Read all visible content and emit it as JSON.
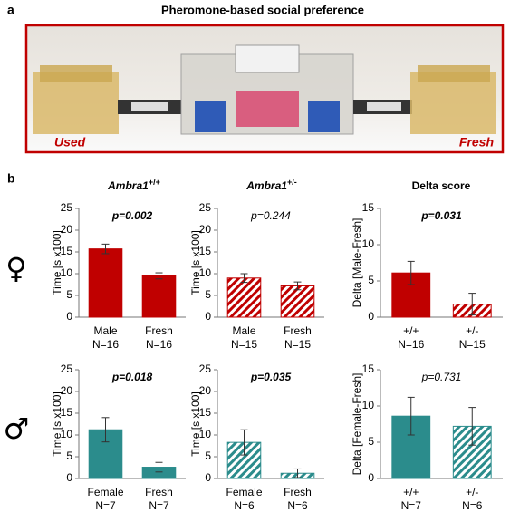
{
  "panel_labels": [
    "a",
    "b"
  ],
  "photo": {
    "title": "Pheromone-based social preference",
    "left_label": "Used",
    "right_label": "Fresh"
  },
  "column_titles": [
    {
      "gene": "Ambra1",
      "genotype": "+/+"
    },
    {
      "gene": "Ambra1",
      "genotype": "+/-"
    },
    {
      "text": "Delta score"
    }
  ],
  "row_symbols": [
    "♀",
    "♂"
  ],
  "chart_data": [
    {
      "type": "bar",
      "ylabel": "Time [s x100]",
      "annotation": "p=0.002",
      "annotation_bold": true,
      "color": "#c00000",
      "categories": [
        "Male",
        "Fresh"
      ],
      "n_labels": [
        "N=16",
        "N=16"
      ],
      "values": [
        15.7,
        9.5
      ],
      "errors": [
        1.1,
        0.7
      ],
      "hatched": [
        false,
        false
      ],
      "ylim": [
        0,
        25
      ],
      "yticks": [
        0,
        5,
        10,
        15,
        20,
        25
      ]
    },
    {
      "type": "bar",
      "ylabel": "Time [s x100]",
      "annotation": "p=0.244",
      "annotation_bold": false,
      "color": "#c00000",
      "categories": [
        "Male",
        "Fresh"
      ],
      "n_labels": [
        "N=15",
        "N=15"
      ],
      "values": [
        9.0,
        7.2
      ],
      "errors": [
        1.0,
        0.9
      ],
      "hatched": [
        true,
        true
      ],
      "ylim": [
        0,
        25
      ],
      "yticks": [
        0,
        5,
        10,
        15,
        20,
        25
      ]
    },
    {
      "type": "bar",
      "ylabel": "Delta [Male-Fresh]",
      "annotation": "p=0.031",
      "annotation_bold": true,
      "color": "#c00000",
      "categories": [
        "+/+",
        "+/-"
      ],
      "n_labels": [
        "N=16",
        "N=15"
      ],
      "values": [
        6.1,
        1.8
      ],
      "errors": [
        1.6,
        1.5
      ],
      "hatched": [
        false,
        true
      ],
      "ylim": [
        0,
        15
      ],
      "yticks": [
        0,
        5,
        10,
        15
      ]
    },
    {
      "type": "bar",
      "ylabel": "Time [s x100]",
      "annotation": "p=0.018",
      "annotation_bold": true,
      "color": "#2b8c8c",
      "categories": [
        "Female",
        "Fresh"
      ],
      "n_labels": [
        "N=7",
        "N=7"
      ],
      "values": [
        11.2,
        2.6
      ],
      "errors": [
        2.8,
        1.1
      ],
      "hatched": [
        false,
        false
      ],
      "ylim": [
        0,
        25
      ],
      "yticks": [
        0,
        5,
        10,
        15,
        20,
        25
      ]
    },
    {
      "type": "bar",
      "ylabel": "Time [s x100]",
      "annotation": "p=0.035",
      "annotation_bold": true,
      "color": "#2b8c8c",
      "categories": [
        "Female",
        "Fresh"
      ],
      "n_labels": [
        "N=6",
        "N=6"
      ],
      "values": [
        8.3,
        1.2
      ],
      "errors": [
        2.9,
        1.0
      ],
      "hatched": [
        true,
        true
      ],
      "ylim": [
        0,
        25
      ],
      "yticks": [
        0,
        5,
        10,
        15,
        20,
        25
      ]
    },
    {
      "type": "bar",
      "ylabel": "Delta [Female-Fresh]",
      "annotation": "p=0.731",
      "annotation_bold": false,
      "color": "#2b8c8c",
      "categories": [
        "+/+",
        "+/-"
      ],
      "n_labels": [
        "N=7",
        "N=6"
      ],
      "values": [
        8.6,
        7.2
      ],
      "errors": [
        2.6,
        2.6
      ],
      "hatched": [
        false,
        true
      ],
      "ylim": [
        0,
        15
      ],
      "yticks": [
        0,
        5,
        10,
        15
      ]
    }
  ]
}
